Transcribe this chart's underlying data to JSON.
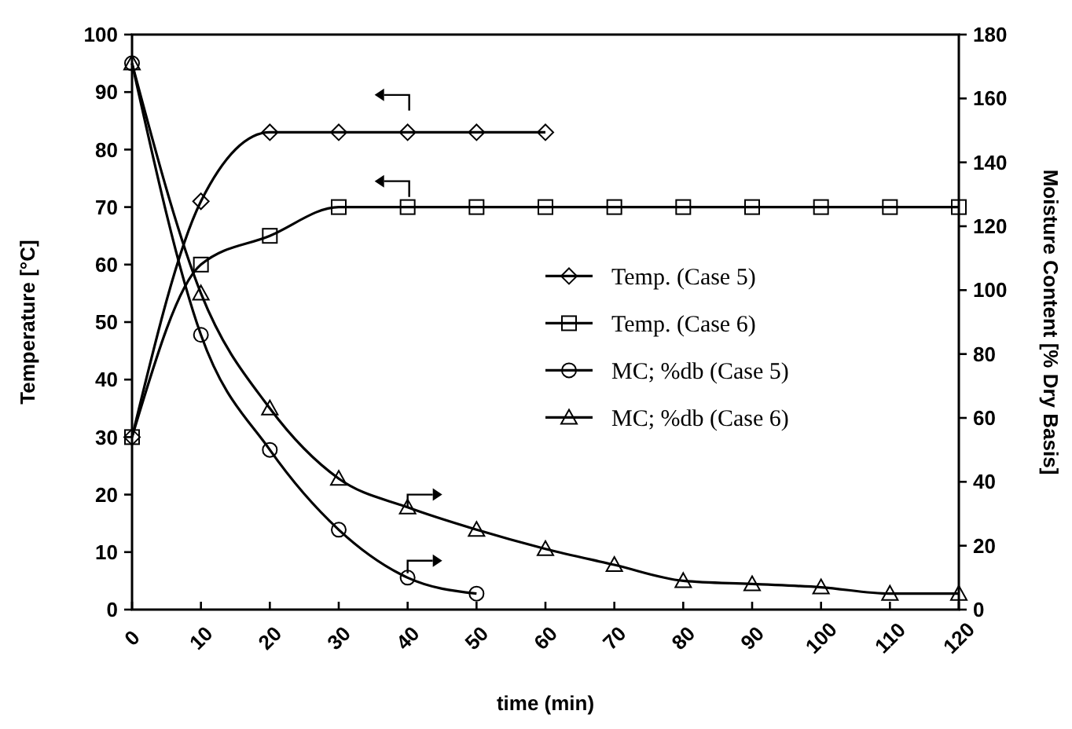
{
  "chart_data": {
    "type": "line",
    "xlabel": "time (min)",
    "ylabel": "Temperature [°C]",
    "y2label": "Moisture Content [% Dry Basis]",
    "xlim": [
      0,
      120
    ],
    "xticks": [
      0,
      10,
      20,
      30,
      40,
      50,
      60,
      70,
      80,
      90,
      100,
      110,
      120
    ],
    "ylim": [
      0,
      100
    ],
    "yticks": [
      0,
      10,
      20,
      30,
      40,
      50,
      60,
      70,
      80,
      90,
      100
    ],
    "y2lim": [
      0,
      180
    ],
    "y2ticks": [
      0,
      20,
      40,
      60,
      80,
      100,
      120,
      140,
      160,
      180
    ],
    "grid": false,
    "legend": "right",
    "line_style": "solid",
    "series": [
      {
        "name": "Temp. (Case 5)",
        "color": "#000000",
        "marker": "diamond",
        "x": [
          0,
          10,
          20,
          30,
          40,
          50,
          60
        ],
        "values": [
          30,
          71,
          83,
          83,
          83,
          83,
          83
        ]
      },
      {
        "name": "Temp. (Case 6)",
        "color": "#000000",
        "marker": "square",
        "x": [
          0,
          10,
          20,
          30,
          40,
          50,
          60,
          70,
          80,
          90,
          100,
          110,
          120
        ],
        "values": [
          30,
          60,
          65,
          70,
          70,
          70,
          70,
          70,
          70,
          70,
          70,
          70,
          70
        ]
      },
      {
        "name": "MC; %db (Case 5)",
        "color": "#000000",
        "marker": "circle",
        "axis": "y2",
        "x": [
          0,
          10,
          20,
          30,
          40,
          50
        ],
        "values": [
          171,
          86,
          50,
          25,
          10,
          5
        ]
      },
      {
        "name": "MC; %db (Case 6)",
        "color": "#000000",
        "marker": "triangle",
        "axis": "y2",
        "x": [
          0,
          10,
          20,
          30,
          40,
          50,
          60,
          70,
          80,
          90,
          100,
          110,
          120
        ],
        "values": [
          171,
          99,
          63,
          41,
          32,
          25,
          19,
          14,
          9,
          8,
          7,
          5,
          5
        ]
      }
    ]
  }
}
